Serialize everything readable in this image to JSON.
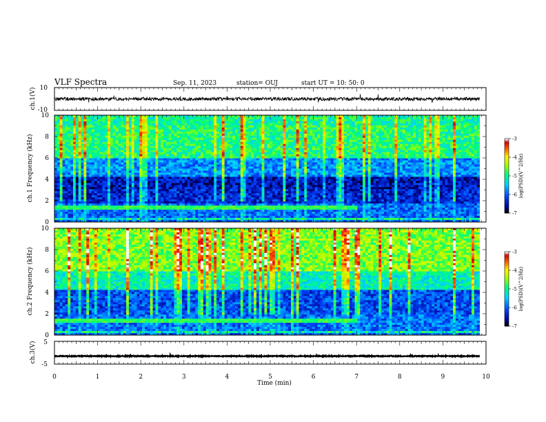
{
  "header": {
    "title": "VLF Spectra",
    "date": "Sep. 11, 2023",
    "station": "station= OUJ",
    "start": "start UT = 10: 50: 0"
  },
  "colors": {
    "background": "#ffffff",
    "axis": "#000000",
    "waveform": "#000000"
  },
  "chart_data": [
    {
      "id": "ch1-waveform",
      "type": "line",
      "ylabel": "ch.1(V)",
      "xlim": [
        0,
        10
      ],
      "ylim": [
        -10,
        10
      ],
      "yticks": [
        "10",
        "-10"
      ],
      "trace": {
        "mean": 0,
        "noise_amplitude": 1.5,
        "end_x": 9.85
      }
    },
    {
      "id": "ch1-spectrogram",
      "type": "heatmap",
      "ylabel": "ch.1 Frequency (kHz)",
      "xlim": [
        0,
        10
      ],
      "ylim": [
        0,
        10
      ],
      "yticks": [
        "10",
        "8",
        "6",
        "4",
        "2",
        "0"
      ],
      "data_end_x": 9.85,
      "colorbar": {
        "label": "log(PSD)(V^2/Hz)",
        "range": [
          -7,
          -3
        ],
        "ticks": [
          "-3",
          "-4",
          "-5",
          "-6",
          "-7"
        ]
      }
    },
    {
      "id": "ch2-spectrogram",
      "type": "heatmap",
      "ylabel": "ch.2 Frequency (kHz)",
      "xlim": [
        0,
        10
      ],
      "ylim": [
        0,
        10
      ],
      "yticks": [
        "10",
        "8",
        "6",
        "4",
        "2",
        "0"
      ],
      "data_end_x": 9.85,
      "colorbar": {
        "label": "log(PSD)(V^2/Hz)",
        "range": [
          -7,
          -3
        ],
        "ticks": [
          "-3",
          "-4",
          "-5",
          "-6",
          "-7"
        ]
      }
    },
    {
      "id": "ch3-waveform",
      "type": "line",
      "ylabel": "ch.3(V)",
      "xlim": [
        0,
        10
      ],
      "ylim": [
        -5,
        5
      ],
      "yticks": [
        "5",
        "-5"
      ],
      "trace": {
        "mean": -1.5,
        "noise_amplitude": 0.2,
        "end_x": 9.85
      },
      "xlabel": "Time (min)",
      "xticks": [
        "0",
        "1",
        "2",
        "3",
        "4",
        "5",
        "6",
        "7",
        "8",
        "9",
        "10"
      ]
    }
  ]
}
